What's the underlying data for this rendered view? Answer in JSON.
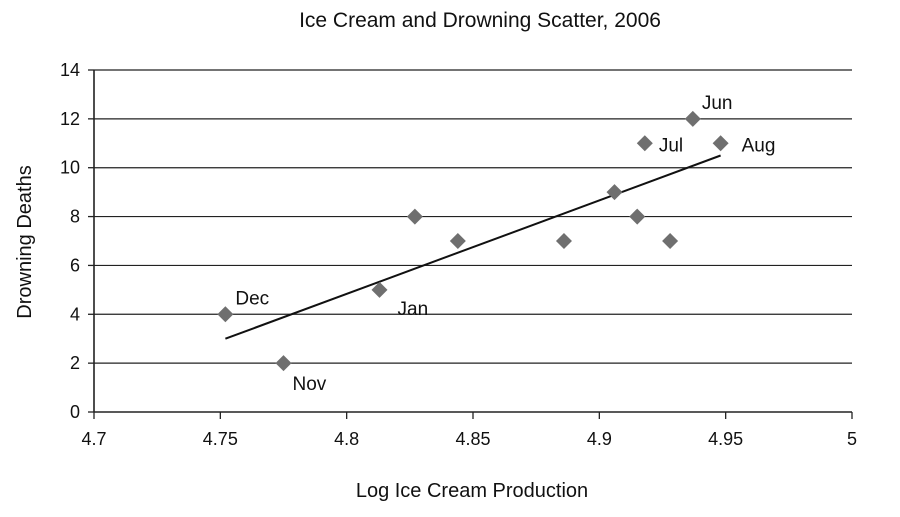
{
  "chart_data": {
    "type": "scatter",
    "title": "Ice Cream and Drowning Scatter, 2006",
    "xlabel": "Log Ice Cream Production",
    "ylabel": "Drowning Deaths",
    "xlim": [
      4.7,
      5
    ],
    "ylim": [
      0,
      14
    ],
    "xticks": [
      "4.7",
      "4.75",
      "4.8",
      "4.85",
      "4.9",
      "4.95",
      "5"
    ],
    "yticks": [
      "0",
      "2",
      "4",
      "6",
      "8",
      "10",
      "12",
      "14"
    ],
    "grid": "horizontal",
    "marker": "diamond",
    "marker_color": "#6f6f6f",
    "points": [
      {
        "x": 4.752,
        "y": 4,
        "label": "Dec"
      },
      {
        "x": 4.775,
        "y": 2,
        "label": "Nov"
      },
      {
        "x": 4.813,
        "y": 5,
        "label": "Jan"
      },
      {
        "x": 4.827,
        "y": 8,
        "label": ""
      },
      {
        "x": 4.844,
        "y": 7,
        "label": ""
      },
      {
        "x": 4.886,
        "y": 7,
        "label": ""
      },
      {
        "x": 4.906,
        "y": 9,
        "label": ""
      },
      {
        "x": 4.915,
        "y": 8,
        "label": ""
      },
      {
        "x": 4.918,
        "y": 11,
        "label": "Jul"
      },
      {
        "x": 4.928,
        "y": 7,
        "label": ""
      },
      {
        "x": 4.937,
        "y": 12,
        "label": "Jun"
      },
      {
        "x": 4.948,
        "y": 11,
        "label": "Aug"
      }
    ],
    "trendline": {
      "type": "linear",
      "x": [
        4.752,
        4.948
      ],
      "y": [
        3,
        10.5
      ],
      "color": "#111111"
    }
  }
}
